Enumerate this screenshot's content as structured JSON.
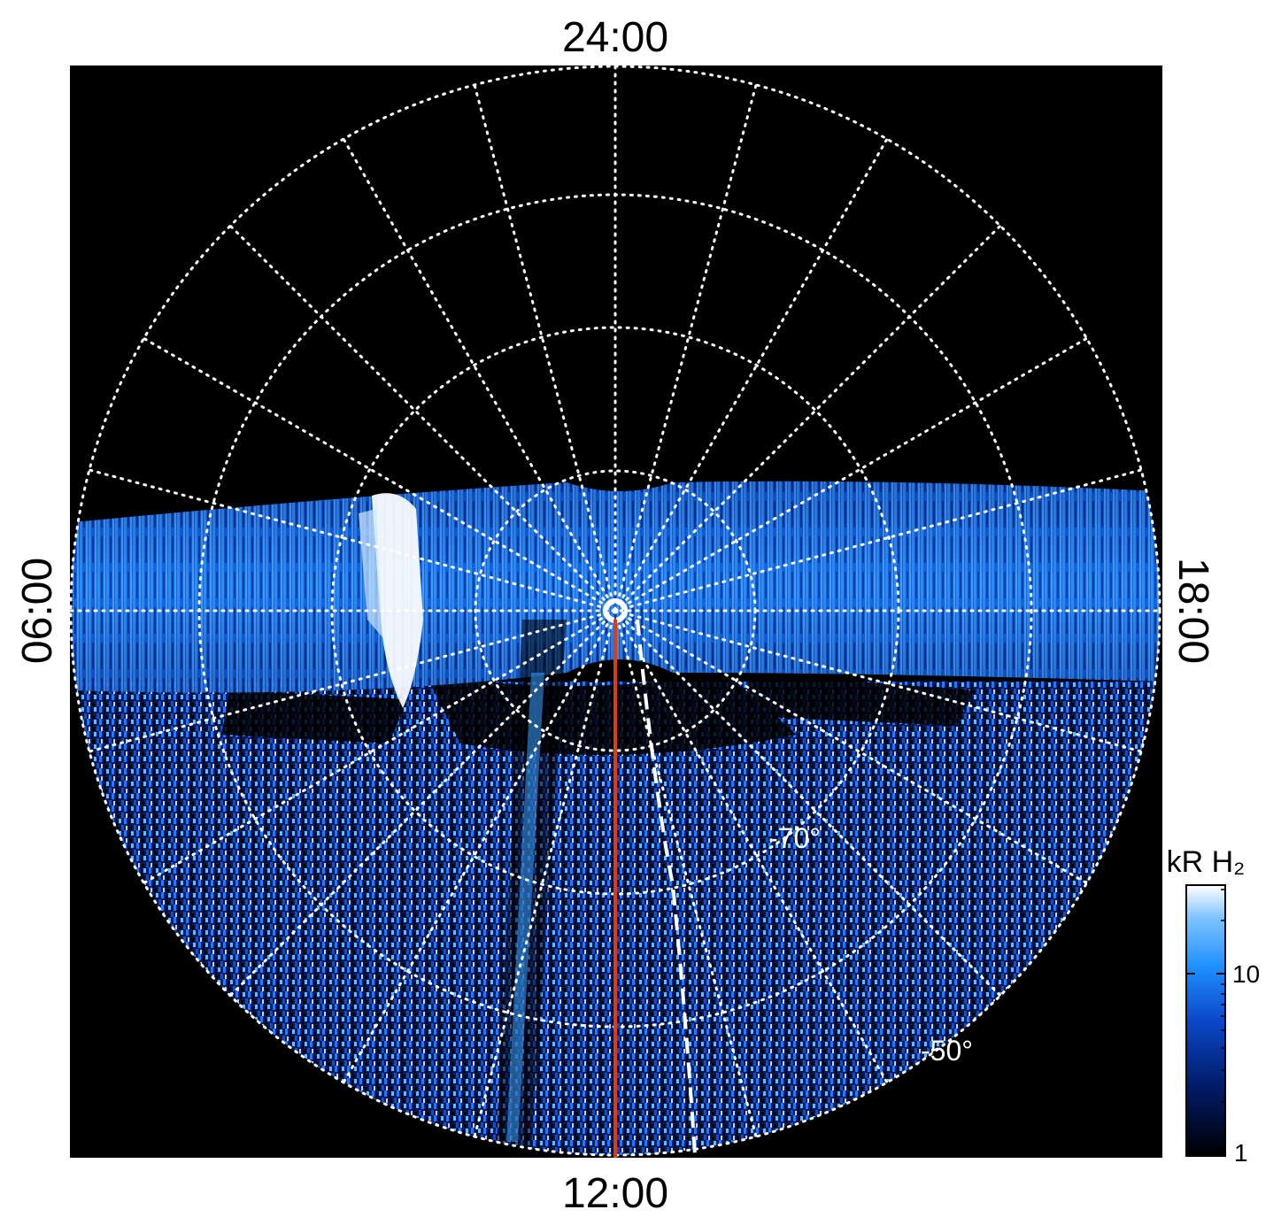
{
  "plot": {
    "time_labels": {
      "top": "24:00",
      "bottom": "12:00",
      "left": "06:00",
      "right": "18:00"
    },
    "latitude_labels": [
      "-70°",
      "-50°"
    ],
    "colorbar": {
      "unit_label": "kR H₂",
      "ticks": [
        "10",
        "1"
      ],
      "colors": [
        "#000000",
        "#001a66",
        "#0a48c8",
        "#1e90ff",
        "#7fc4ff",
        "#ffffff"
      ]
    },
    "colors": {
      "background": "#000000",
      "grid": "#ffffff",
      "meridian_line": "#e03a10",
      "auroral_band": "#1e7bff",
      "bright_spot": "#ffffff"
    }
  }
}
